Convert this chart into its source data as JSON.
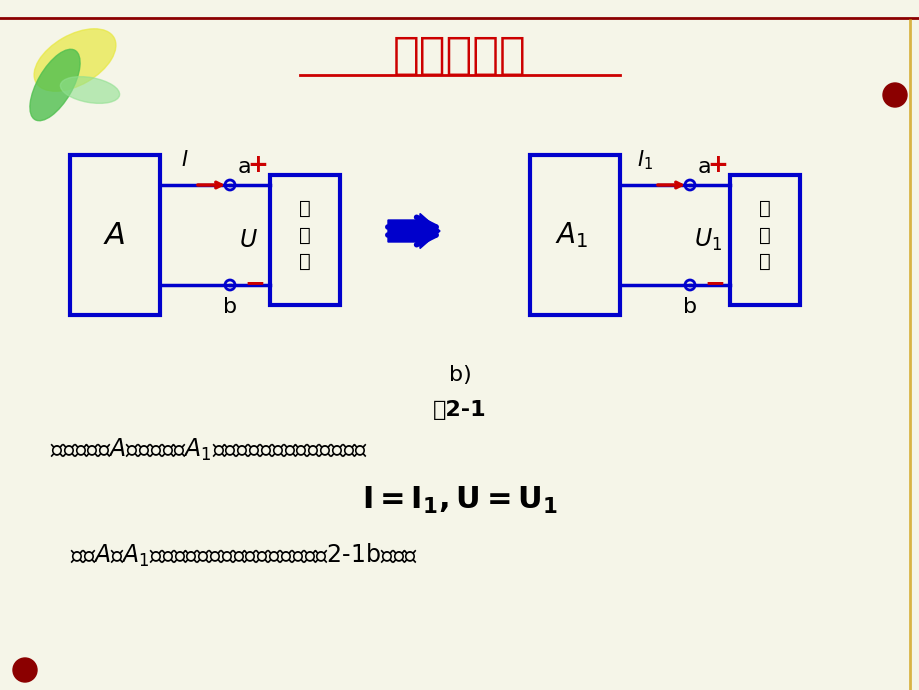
{
  "title": "等效的概念",
  "title_color": "#CC0000",
  "title_fontsize": 32,
  "bg_color": "#F5F5E8",
  "circuit_color": "#0000CC",
  "red_color": "#CC0000",
  "black_color": "#000000",
  "fig2_label": "图2-1",
  "caption1": "当二端网络A与二端网络A₁的端钮的伏安特性相同时，即",
  "formula": "I = I₁,U = U₁",
  "caption2": "则称A与A₁是两个对外电路等效的网络，如图2-1b所示。"
}
